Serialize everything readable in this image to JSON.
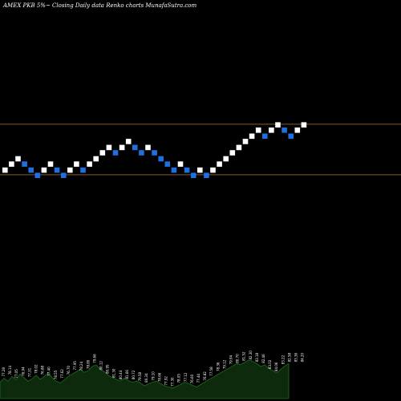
{
  "chart_data": {
    "type": "renko",
    "title": "AMEX  PKB 5%~  Closing Daily data  Renko  charts MunafaSutra.com",
    "box_size": 1.69,
    "colors": {
      "background": "#000000",
      "up_brick": "#ffffff",
      "down_brick": "#1e6fe0",
      "reference_line": "#8a5a2b",
      "volume_fill": "#0d2a0d",
      "volume_stroke": "#1e6b1e"
    },
    "reference_lines": [
      84.2,
      76.6
    ],
    "bricks": [
      {
        "level": 77.3,
        "dir": "up"
      },
      {
        "level": 78.2,
        "dir": "up"
      },
      {
        "level": 79.0,
        "dir": "up"
      },
      {
        "level": 78.2,
        "dir": "down"
      },
      {
        "level": 77.3,
        "dir": "down"
      },
      {
        "level": 76.5,
        "dir": "down"
      },
      {
        "level": 77.3,
        "dir": "up"
      },
      {
        "level": 78.2,
        "dir": "up"
      },
      {
        "level": 77.3,
        "dir": "down"
      },
      {
        "level": 76.5,
        "dir": "down"
      },
      {
        "level": 77.3,
        "dir": "up"
      },
      {
        "level": 78.2,
        "dir": "up"
      },
      {
        "level": 77.3,
        "dir": "down"
      },
      {
        "level": 78.2,
        "dir": "up"
      },
      {
        "level": 79.0,
        "dir": "up"
      },
      {
        "level": 79.9,
        "dir": "up"
      },
      {
        "level": 80.7,
        "dir": "up"
      },
      {
        "level": 79.9,
        "dir": "down"
      },
      {
        "level": 80.7,
        "dir": "up"
      },
      {
        "level": 81.6,
        "dir": "up"
      },
      {
        "level": 80.7,
        "dir": "down"
      },
      {
        "level": 79.9,
        "dir": "down"
      },
      {
        "level": 80.7,
        "dir": "up"
      },
      {
        "level": 79.9,
        "dir": "down"
      },
      {
        "level": 79.0,
        "dir": "down"
      },
      {
        "level": 78.2,
        "dir": "down"
      },
      {
        "level": 77.3,
        "dir": "down"
      },
      {
        "level": 78.2,
        "dir": "up"
      },
      {
        "level": 77.3,
        "dir": "down"
      },
      {
        "level": 76.5,
        "dir": "down"
      },
      {
        "level": 77.3,
        "dir": "up"
      },
      {
        "level": 76.5,
        "dir": "down"
      },
      {
        "level": 77.3,
        "dir": "up"
      },
      {
        "level": 78.2,
        "dir": "up"
      },
      {
        "level": 79.0,
        "dir": "up"
      },
      {
        "level": 79.9,
        "dir": "up"
      },
      {
        "level": 80.7,
        "dir": "up"
      },
      {
        "level": 81.6,
        "dir": "up"
      },
      {
        "level": 82.4,
        "dir": "up"
      },
      {
        "level": 83.3,
        "dir": "up"
      },
      {
        "level": 82.4,
        "dir": "down"
      },
      {
        "level": 83.3,
        "dir": "up"
      },
      {
        "level": 84.1,
        "dir": "up"
      },
      {
        "level": 83.3,
        "dir": "down"
      },
      {
        "level": 82.4,
        "dir": "down"
      },
      {
        "level": 83.3,
        "dir": "up"
      },
      {
        "level": 84.1,
        "dir": "up"
      }
    ],
    "volume_profile": [
      28,
      35,
      30,
      38,
      32,
      42,
      36,
      30,
      34,
      40,
      33,
      38,
      44,
      36,
      30,
      27,
      32,
      38,
      42,
      46,
      50,
      45,
      48,
      55,
      58,
      50,
      46,
      40,
      36,
      33,
      30,
      35,
      31,
      28,
      30,
      27,
      22,
      25,
      28,
      30,
      26,
      22,
      20,
      18,
      21,
      24,
      28,
      26,
      23,
      20,
      24,
      28,
      32,
      36,
      40,
      44,
      48,
      52,
      56,
      60,
      58,
      62,
      66,
      64,
      60,
      55,
      58,
      52,
      48,
      44,
      50,
      56,
      60
    ],
    "volume_labels": [
      "77.28",
      "78.14",
      "77.05",
      "76.94",
      "77.31",
      "78.02",
      "76.88",
      "77.40",
      "78.55",
      "77.62",
      "76.70",
      "77.95",
      "78.24",
      "78.80",
      "79.66",
      "80.12",
      "80.95",
      "81.30",
      "80.44",
      "81.66",
      "80.72",
      "79.58",
      "80.34",
      "79.10",
      "78.66",
      "77.92",
      "77.30",
      "78.05",
      "77.12",
      "76.60",
      "77.44",
      "76.82",
      "77.58",
      "78.36",
      "79.12",
      "79.94",
      "80.70",
      "81.52",
      "82.30",
      "83.18",
      "82.46",
      "83.02",
      "84.06",
      "83.22",
      "82.58",
      "83.36",
      "84.20"
    ]
  }
}
